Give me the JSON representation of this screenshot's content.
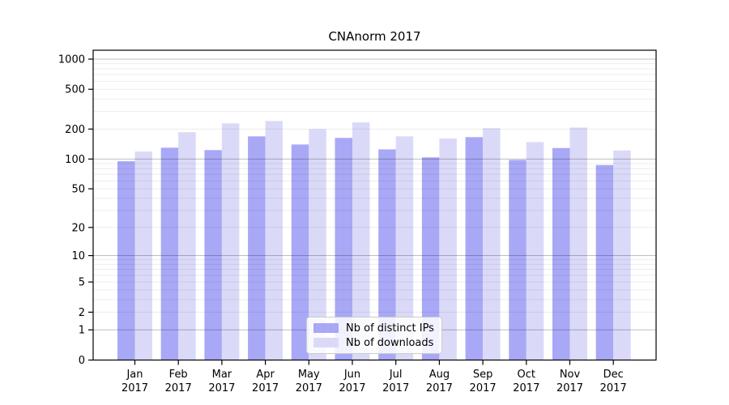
{
  "chart_data": {
    "type": "bar",
    "title": "CNAnorm 2017",
    "xlabel": "",
    "ylabel": "",
    "year": "2017",
    "months": [
      "Jan",
      "Feb",
      "Mar",
      "Apr",
      "May",
      "Jun",
      "Jul",
      "Aug",
      "Sep",
      "Oct",
      "Nov",
      "Dec"
    ],
    "categories": [
      "Jan 2017",
      "Feb 2017",
      "Mar 2017",
      "Apr 2017",
      "May 2017",
      "Jun 2017",
      "Jul 2017",
      "Aug 2017",
      "Sep 2017",
      "Oct 2017",
      "Nov 2017",
      "Dec 2017"
    ],
    "series": [
      {
        "name": "Nb of distinct IPs",
        "key": "distinct-ips",
        "color": "#a8a8f6",
        "values": [
          95,
          130,
          123,
          169,
          140,
          163,
          125,
          104,
          166,
          98,
          129,
          87
        ]
      },
      {
        "name": "Nb of downloads",
        "key": "downloads",
        "color": "#dadaf8",
        "values": [
          119,
          186,
          228,
          241,
          200,
          233,
          169,
          161,
          204,
          148,
          207,
          122
        ]
      }
    ],
    "y_scale": "log1p",
    "y_ticks": [
      0,
      1,
      2,
      5,
      10,
      20,
      50,
      100,
      200,
      500,
      1000
    ],
    "ylim": [
      0,
      1230
    ],
    "grid": true,
    "legend_position": "lower center inside"
  }
}
